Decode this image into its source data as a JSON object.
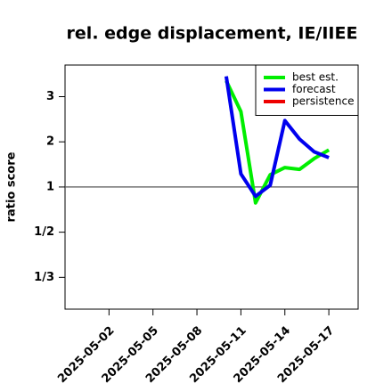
{
  "chart_data": {
    "type": "line",
    "title": "rel. edge displacement, IE/IIEE",
    "y_label": "ratio score",
    "yscale": "symmetric-ratio",
    "x": [
      "2025-05-10",
      "2025-05-11",
      "2025-05-12",
      "2025-05-13",
      "2025-05-14",
      "2025-05-15",
      "2025-05-16",
      "2025-05-17"
    ],
    "series": [
      {
        "name": "best est.",
        "color": "#00ee00",
        "values": [
          3.35,
          2.67,
          0.74,
          1.27,
          1.43,
          1.39,
          1.63,
          1.82
        ]
      },
      {
        "name": "forecast",
        "color": "#0000ee",
        "values": [
          3.45,
          1.29,
          0.83,
          1.04,
          2.47,
          2.06,
          1.78,
          1.65
        ]
      },
      {
        "name": "persistence",
        "color": "#ee0000",
        "values": [
          null,
          null,
          null,
          null,
          null,
          null,
          null,
          null
        ]
      }
    ],
    "xlim": [
      "2025-04-29",
      "2025-05-19"
    ],
    "xticks": [
      "2025-05-02",
      "2025-05-05",
      "2025-05-08",
      "2025-05-11",
      "2025-05-14",
      "2025-05-17"
    ],
    "highlight_xtick": "2025-05-08",
    "highlight_color": "#228b22",
    "ylim": [
      0.27,
      3.7
    ],
    "yticks": [
      {
        "value": 0.3333,
        "label": "1/3"
      },
      {
        "value": 0.5,
        "label": "1/2"
      },
      1,
      2,
      3
    ],
    "reference_line": 1,
    "legend": "top-right"
  }
}
